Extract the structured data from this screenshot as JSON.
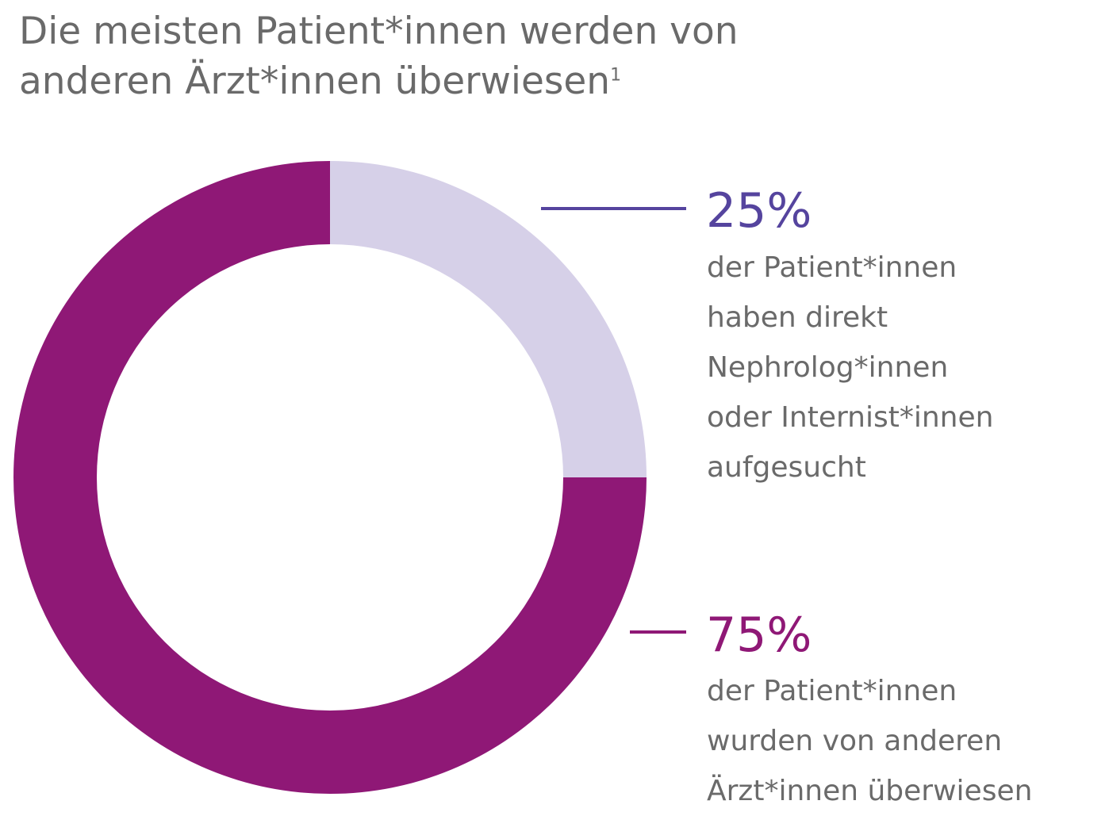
{
  "title": {
    "line1": "Die meisten Patient*innen werden von",
    "line2": "anderen Ärzt*innen überwiesen",
    "footnote": "1"
  },
  "chart_data": {
    "type": "pie",
    "variant": "donut",
    "slices": [
      {
        "label": "25%",
        "value": 25,
        "color": "#d6d0e8",
        "label_color": "#55449e",
        "description": [
          "der Patient*innen",
          "haben direkt",
          "Nephrolog*innen",
          "oder Internist*innen",
          "aufgesucht"
        ]
      },
      {
        "label": "75%",
        "value": 75,
        "color": "#8f1876",
        "label_color": "#8f1876",
        "description": [
          "der Patient*innen",
          "wurden von anderen",
          "Ärzt*innen überwiesen"
        ]
      }
    ],
    "start_angle": "12 o'clock",
    "direction": "clockwise",
    "legend": "right"
  }
}
